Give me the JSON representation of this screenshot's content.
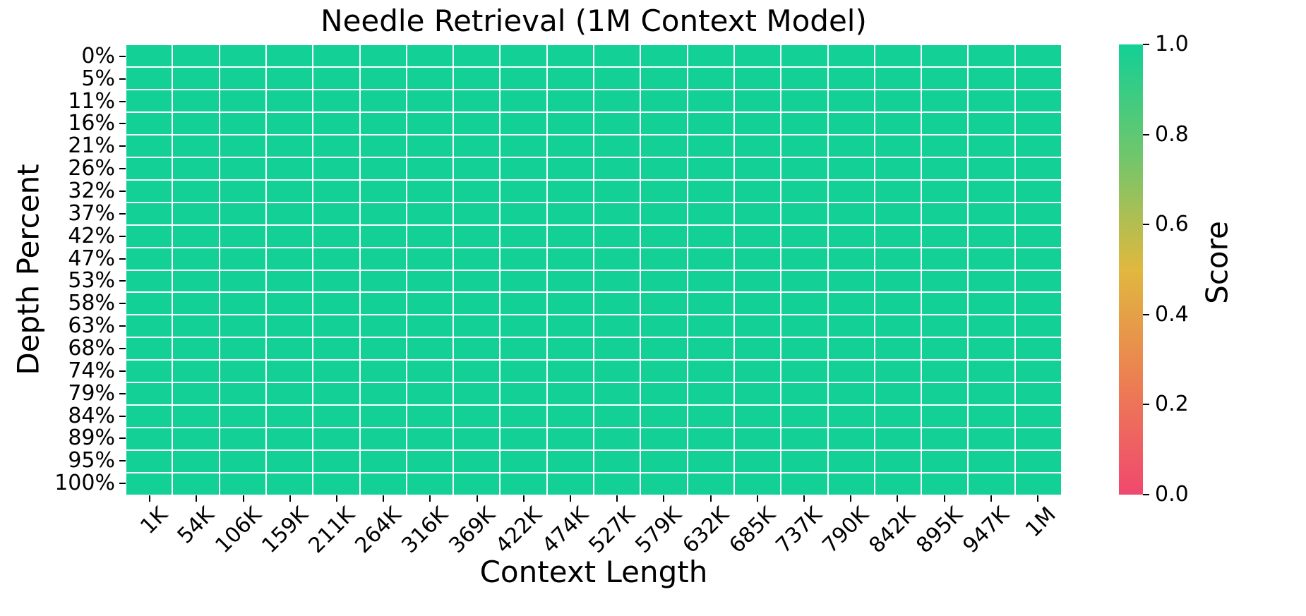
{
  "figure": {
    "background": "#ffffff",
    "text_color": "#000000"
  },
  "chart_data": {
    "type": "heatmap",
    "title": "Needle Retrieval (1M Context Model)",
    "xlabel": "Context Length",
    "ylabel": "Depth Percent",
    "x_categories": [
      "1K",
      "54K",
      "106K",
      "159K",
      "211K",
      "264K",
      "316K",
      "369K",
      "422K",
      "474K",
      "527K",
      "579K",
      "632K",
      "685K",
      "737K",
      "790K",
      "842K",
      "895K",
      "947K",
      "1M"
    ],
    "y_categories": [
      "0%",
      "5%",
      "11%",
      "16%",
      "21%",
      "26%",
      "32%",
      "37%",
      "42%",
      "47%",
      "53%",
      "58%",
      "63%",
      "68%",
      "74%",
      "79%",
      "84%",
      "89%",
      "95%",
      "100%"
    ],
    "values": [
      [
        1,
        1,
        1,
        1,
        1,
        1,
        1,
        1,
        1,
        1,
        1,
        1,
        1,
        1,
        1,
        1,
        1,
        1,
        1,
        1
      ],
      [
        1,
        1,
        1,
        1,
        1,
        1,
        1,
        1,
        1,
        1,
        1,
        1,
        1,
        1,
        1,
        1,
        1,
        1,
        1,
        1
      ],
      [
        1,
        1,
        1,
        1,
        1,
        1,
        1,
        1,
        1,
        1,
        1,
        1,
        1,
        1,
        1,
        1,
        1,
        1,
        1,
        1
      ],
      [
        1,
        1,
        1,
        1,
        1,
        1,
        1,
        1,
        1,
        1,
        1,
        1,
        1,
        1,
        1,
        1,
        1,
        1,
        1,
        1
      ],
      [
        1,
        1,
        1,
        1,
        1,
        1,
        1,
        1,
        1,
        1,
        1,
        1,
        1,
        1,
        1,
        1,
        1,
        1,
        1,
        1
      ],
      [
        1,
        1,
        1,
        1,
        1,
        1,
        1,
        1,
        1,
        1,
        1,
        1,
        1,
        1,
        1,
        1,
        1,
        1,
        1,
        1
      ],
      [
        1,
        1,
        1,
        1,
        1,
        1,
        1,
        1,
        1,
        1,
        1,
        1,
        1,
        1,
        1,
        1,
        1,
        1,
        1,
        1
      ],
      [
        1,
        1,
        1,
        1,
        1,
        1,
        1,
        1,
        1,
        1,
        1,
        1,
        1,
        1,
        1,
        1,
        1,
        1,
        1,
        1
      ],
      [
        1,
        1,
        1,
        1,
        1,
        1,
        1,
        1,
        1,
        1,
        1,
        1,
        1,
        1,
        1,
        1,
        1,
        1,
        1,
        1
      ],
      [
        1,
        1,
        1,
        1,
        1,
        1,
        1,
        1,
        1,
        1,
        1,
        1,
        1,
        1,
        1,
        1,
        1,
        1,
        1,
        1
      ],
      [
        1,
        1,
        1,
        1,
        1,
        1,
        1,
        1,
        1,
        1,
        1,
        1,
        1,
        1,
        1,
        1,
        1,
        1,
        1,
        1
      ],
      [
        1,
        1,
        1,
        1,
        1,
        1,
        1,
        1,
        1,
        1,
        1,
        1,
        1,
        1,
        1,
        1,
        1,
        1,
        1,
        1
      ],
      [
        1,
        1,
        1,
        1,
        1,
        1,
        1,
        1,
        1,
        1,
        1,
        1,
        1,
        1,
        1,
        1,
        1,
        1,
        1,
        1
      ],
      [
        1,
        1,
        1,
        1,
        1,
        1,
        1,
        1,
        1,
        1,
        1,
        1,
        1,
        1,
        1,
        1,
        1,
        1,
        1,
        1
      ],
      [
        1,
        1,
        1,
        1,
        1,
        1,
        1,
        1,
        1,
        1,
        1,
        1,
        1,
        1,
        1,
        1,
        1,
        1,
        1,
        1
      ],
      [
        1,
        1,
        1,
        1,
        1,
        1,
        1,
        1,
        1,
        1,
        1,
        1,
        1,
        1,
        1,
        1,
        1,
        1,
        1,
        1
      ],
      [
        1,
        1,
        1,
        1,
        1,
        1,
        1,
        1,
        1,
        1,
        1,
        1,
        1,
        1,
        1,
        1,
        1,
        1,
        1,
        1
      ],
      [
        1,
        1,
        1,
        1,
        1,
        1,
        1,
        1,
        1,
        1,
        1,
        1,
        1,
        1,
        1,
        1,
        1,
        1,
        1,
        1
      ],
      [
        1,
        1,
        1,
        1,
        1,
        1,
        1,
        1,
        1,
        1,
        1,
        1,
        1,
        1,
        1,
        1,
        1,
        1,
        1,
        1
      ],
      [
        1,
        1,
        1,
        1,
        1,
        1,
        1,
        1,
        1,
        1,
        1,
        1,
        1,
        1,
        1,
        1,
        1,
        1,
        1,
        1
      ]
    ],
    "value_range": [
      0.0,
      1.0
    ],
    "grid_line_color": "#ffffff",
    "colorbar": {
      "label": "Score",
      "tick_labels": [
        "1.0",
        "0.8",
        "0.6",
        "0.4",
        "0.2",
        "0.0"
      ],
      "tick_values": [
        1.0,
        0.8,
        0.6,
        0.4,
        0.2,
        0.0
      ],
      "colormap_stops": [
        {
          "value": 0.0,
          "color": "#f0486e"
        },
        {
          "value": 0.25,
          "color": "#ec7e53"
        },
        {
          "value": 0.5,
          "color": "#e0b83f"
        },
        {
          "value": 0.75,
          "color": "#71c66b"
        },
        {
          "value": 1.0,
          "color": "#12d096"
        }
      ]
    }
  }
}
